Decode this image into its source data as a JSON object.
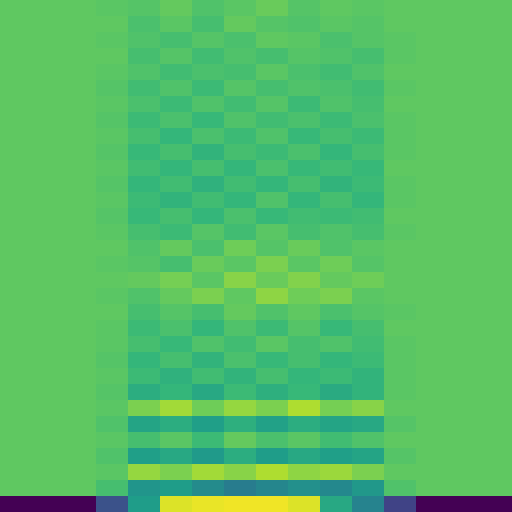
{
  "chart_data": {
    "type": "heatmap",
    "tick_labels": false,
    "color_range": [
      0,
      1
    ],
    "cells": [
      [
        0.75,
        0.75,
        0.75,
        0.74,
        0.73,
        0.76,
        0.72,
        0.74,
        0.77,
        0.73,
        0.75,
        0.74,
        0.75,
        0.75,
        0.75,
        0.75
      ],
      [
        0.75,
        0.75,
        0.75,
        0.75,
        0.71,
        0.74,
        0.7,
        0.76,
        0.73,
        0.72,
        0.74,
        0.73,
        0.75,
        0.75,
        0.75,
        0.75
      ],
      [
        0.75,
        0.75,
        0.75,
        0.74,
        0.72,
        0.7,
        0.73,
        0.71,
        0.75,
        0.74,
        0.71,
        0.73,
        0.74,
        0.75,
        0.75,
        0.75
      ],
      [
        0.75,
        0.75,
        0.75,
        0.75,
        0.7,
        0.73,
        0.69,
        0.72,
        0.7,
        0.73,
        0.72,
        0.7,
        0.74,
        0.75,
        0.75,
        0.75
      ],
      [
        0.75,
        0.75,
        0.75,
        0.74,
        0.72,
        0.69,
        0.71,
        0.7,
        0.74,
        0.71,
        0.69,
        0.72,
        0.75,
        0.75,
        0.75,
        0.75
      ],
      [
        0.75,
        0.75,
        0.75,
        0.73,
        0.69,
        0.72,
        0.68,
        0.73,
        0.7,
        0.72,
        0.71,
        0.69,
        0.74,
        0.75,
        0.75,
        0.75
      ],
      [
        0.75,
        0.75,
        0.75,
        0.74,
        0.71,
        0.68,
        0.72,
        0.69,
        0.73,
        0.68,
        0.72,
        0.7,
        0.75,
        0.75,
        0.75,
        0.75
      ],
      [
        0.75,
        0.75,
        0.75,
        0.73,
        0.68,
        0.71,
        0.67,
        0.72,
        0.69,
        0.71,
        0.68,
        0.71,
        0.74,
        0.75,
        0.75,
        0.75
      ],
      [
        0.75,
        0.75,
        0.75,
        0.74,
        0.7,
        0.66,
        0.71,
        0.68,
        0.72,
        0.67,
        0.7,
        0.68,
        0.74,
        0.75,
        0.75,
        0.75
      ],
      [
        0.75,
        0.75,
        0.75,
        0.73,
        0.67,
        0.7,
        0.65,
        0.7,
        0.68,
        0.71,
        0.66,
        0.7,
        0.74,
        0.75,
        0.75,
        0.75
      ],
      [
        0.75,
        0.75,
        0.75,
        0.74,
        0.69,
        0.66,
        0.7,
        0.66,
        0.71,
        0.67,
        0.69,
        0.67,
        0.75,
        0.75,
        0.75,
        0.75
      ],
      [
        0.75,
        0.75,
        0.75,
        0.73,
        0.66,
        0.69,
        0.64,
        0.69,
        0.66,
        0.7,
        0.65,
        0.68,
        0.74,
        0.75,
        0.75,
        0.75
      ],
      [
        0.75,
        0.75,
        0.75,
        0.74,
        0.68,
        0.65,
        0.69,
        0.66,
        0.72,
        0.66,
        0.7,
        0.66,
        0.74,
        0.75,
        0.75,
        0.75
      ],
      [
        0.75,
        0.75,
        0.75,
        0.73,
        0.67,
        0.7,
        0.66,
        0.71,
        0.67,
        0.69,
        0.68,
        0.69,
        0.75,
        0.75,
        0.75,
        0.75
      ],
      [
        0.75,
        0.75,
        0.75,
        0.74,
        0.7,
        0.68,
        0.73,
        0.69,
        0.74,
        0.7,
        0.72,
        0.7,
        0.74,
        0.75,
        0.75,
        0.75
      ],
      [
        0.75,
        0.75,
        0.75,
        0.75,
        0.72,
        0.76,
        0.71,
        0.78,
        0.73,
        0.77,
        0.72,
        0.74,
        0.75,
        0.75,
        0.75,
        0.75
      ],
      [
        0.75,
        0.75,
        0.75,
        0.74,
        0.73,
        0.7,
        0.77,
        0.74,
        0.8,
        0.74,
        0.78,
        0.73,
        0.75,
        0.75,
        0.75,
        0.75
      ],
      [
        0.75,
        0.75,
        0.75,
        0.75,
        0.76,
        0.79,
        0.74,
        0.82,
        0.77,
        0.81,
        0.76,
        0.78,
        0.75,
        0.75,
        0.75,
        0.75
      ],
      [
        0.75,
        0.75,
        0.75,
        0.74,
        0.72,
        0.76,
        0.8,
        0.75,
        0.83,
        0.78,
        0.8,
        0.74,
        0.75,
        0.75,
        0.75,
        0.75
      ],
      [
        0.75,
        0.75,
        0.75,
        0.75,
        0.7,
        0.73,
        0.7,
        0.76,
        0.72,
        0.75,
        0.71,
        0.73,
        0.74,
        0.75,
        0.75,
        0.75
      ],
      [
        0.75,
        0.75,
        0.75,
        0.74,
        0.68,
        0.71,
        0.66,
        0.72,
        0.68,
        0.73,
        0.67,
        0.7,
        0.75,
        0.75,
        0.75,
        0.75
      ],
      [
        0.75,
        0.75,
        0.75,
        0.74,
        0.7,
        0.67,
        0.72,
        0.69,
        0.74,
        0.7,
        0.72,
        0.69,
        0.74,
        0.75,
        0.75,
        0.75
      ],
      [
        0.75,
        0.75,
        0.75,
        0.73,
        0.66,
        0.7,
        0.65,
        0.71,
        0.67,
        0.7,
        0.66,
        0.68,
        0.74,
        0.75,
        0.75,
        0.75
      ],
      [
        0.75,
        0.75,
        0.75,
        0.74,
        0.68,
        0.64,
        0.69,
        0.65,
        0.7,
        0.66,
        0.68,
        0.65,
        0.74,
        0.75,
        0.75,
        0.75
      ],
      [
        0.75,
        0.75,
        0.75,
        0.73,
        0.62,
        0.66,
        0.6,
        0.68,
        0.63,
        0.67,
        0.61,
        0.65,
        0.74,
        0.75,
        0.75,
        0.75
      ],
      [
        0.75,
        0.75,
        0.75,
        0.74,
        0.8,
        0.86,
        0.78,
        0.84,
        0.8,
        0.88,
        0.79,
        0.82,
        0.75,
        0.75,
        0.75,
        0.75
      ],
      [
        0.75,
        0.75,
        0.75,
        0.72,
        0.58,
        0.62,
        0.56,
        0.63,
        0.57,
        0.62,
        0.58,
        0.6,
        0.73,
        0.75,
        0.75,
        0.75
      ],
      [
        0.75,
        0.75,
        0.75,
        0.74,
        0.7,
        0.74,
        0.68,
        0.76,
        0.71,
        0.74,
        0.69,
        0.72,
        0.75,
        0.75,
        0.75,
        0.75
      ],
      [
        0.75,
        0.75,
        0.75,
        0.72,
        0.56,
        0.6,
        0.54,
        0.62,
        0.55,
        0.6,
        0.56,
        0.58,
        0.73,
        0.75,
        0.75,
        0.75
      ],
      [
        0.75,
        0.75,
        0.75,
        0.74,
        0.84,
        0.8,
        0.86,
        0.82,
        0.88,
        0.83,
        0.85,
        0.8,
        0.75,
        0.75,
        0.75,
        0.75
      ],
      [
        0.75,
        0.75,
        0.75,
        0.7,
        0.52,
        0.55,
        0.48,
        0.42,
        0.46,
        0.5,
        0.47,
        0.53,
        0.72,
        0.75,
        0.75,
        0.75
      ],
      [
        0.0,
        0.0,
        0.0,
        0.25,
        0.55,
        0.95,
        0.97,
        0.98,
        0.98,
        0.95,
        0.6,
        0.45,
        0.2,
        0.0,
        0.0,
        0.0
      ]
    ]
  }
}
